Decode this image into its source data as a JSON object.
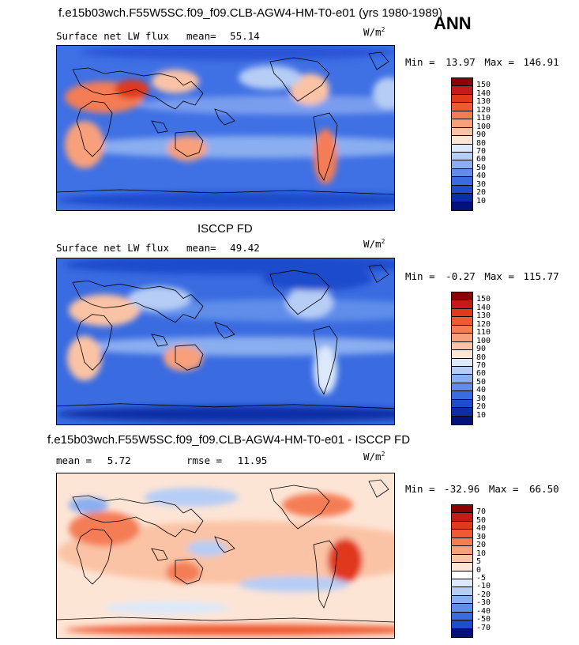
{
  "header": {
    "title": "f.e15b03wch.F55W5SC.f09_f09.CLB-AGW4-HM-T0-e01 (yrs 1980-1989)",
    "season": "ANN"
  },
  "panels": [
    {
      "id": "model",
      "left_label": "Surface net LW flux",
      "mean_label": "mean=",
      "mean_value": "55.14",
      "units": "W/m",
      "units_exp": "2",
      "min_label": "Min =",
      "min_value": "13.97",
      "max_label": "Max =",
      "max_value": "146.91",
      "colorbar": {
        "labels": [
          "150",
          "140",
          "130",
          "120",
          "110",
          "100",
          "90",
          "80",
          "70",
          "60",
          "50",
          "40",
          "30",
          "20",
          "10"
        ],
        "colors": [
          "#8b0000",
          "#c41a1a",
          "#e0391b",
          "#ef5a33",
          "#f47d54",
          "#f8a07b",
          "#fbc3a5",
          "#fde5d6",
          "#dce9fb",
          "#b6cdf5",
          "#8aaef0",
          "#5f8de9",
          "#3a6be0",
          "#1f4ccc",
          "#0b2ea6",
          "#03107a"
        ]
      },
      "base": "#3f70e4",
      "blobs": [
        {
          "c": "#2a55d6",
          "x": 230,
          "y": 8,
          "rx": 200,
          "ry": 10
        },
        {
          "c": "#7a9eee",
          "x": 300,
          "y": 75,
          "rx": 200,
          "ry": 12
        },
        {
          "c": "#8aaef0",
          "x": 250,
          "y": 128,
          "rx": 230,
          "ry": 14
        },
        {
          "c": "#f47d54",
          "x": 60,
          "y": 65,
          "rx": 50,
          "ry": 20
        },
        {
          "c": "#e0391b",
          "x": 95,
          "y": 55,
          "rx": 22,
          "ry": 12
        },
        {
          "c": "#fbc3a5",
          "x": 150,
          "y": 45,
          "rx": 30,
          "ry": 15
        },
        {
          "c": "#f8a07b",
          "x": 35,
          "y": 125,
          "rx": 25,
          "ry": 30
        },
        {
          "c": "#f8a07b",
          "x": 165,
          "y": 130,
          "rx": 25,
          "ry": 16
        },
        {
          "c": "#fbc3a5",
          "x": 320,
          "y": 55,
          "rx": 25,
          "ry": 20
        },
        {
          "c": "#f47d54",
          "x": 340,
          "y": 140,
          "rx": 15,
          "ry": 35
        },
        {
          "c": "#b6cdf5",
          "x": 270,
          "y": 40,
          "rx": 40,
          "ry": 15
        },
        {
          "c": "#1f4ccc",
          "x": 240,
          "y": 195,
          "rx": 240,
          "ry": 10
        },
        {
          "c": "#b6cdf5",
          "x": 420,
          "y": 60,
          "rx": 20,
          "ry": 20
        }
      ]
    },
    {
      "id": "obs",
      "name": "ISCCP FD",
      "left_label": "Surface net LW flux",
      "mean_label": "mean=",
      "mean_value": "49.42",
      "units": "W/m",
      "units_exp": "2",
      "min_label": "Min =",
      "min_value": "-0.27",
      "max_label": "Max =",
      "max_value": "115.77",
      "colorbar": {
        "labels": [
          "150",
          "140",
          "130",
          "120",
          "110",
          "100",
          "90",
          "80",
          "70",
          "60",
          "50",
          "40",
          "30",
          "20",
          "10"
        ],
        "colors": [
          "#8b0000",
          "#c41a1a",
          "#e0391b",
          "#ef5a33",
          "#f47d54",
          "#f8a07b",
          "#fbc3a5",
          "#fde5d6",
          "#dce9fb",
          "#b6cdf5",
          "#8aaef0",
          "#5f8de9",
          "#3a6be0",
          "#1f4ccc",
          "#0b2ea6",
          "#03107a"
        ]
      },
      "base": "#3a6be0",
      "blobs": [
        {
          "c": "#1f4ccc",
          "x": 230,
          "y": 8,
          "rx": 220,
          "ry": 12
        },
        {
          "c": "#5f8de9",
          "x": 300,
          "y": 65,
          "rx": 200,
          "ry": 14
        },
        {
          "c": "#8aaef0",
          "x": 250,
          "y": 110,
          "rx": 230,
          "ry": 12
        },
        {
          "c": "#fbc3a5",
          "x": 60,
          "y": 65,
          "rx": 45,
          "ry": 20
        },
        {
          "c": "#b6cdf5",
          "x": 130,
          "y": 50,
          "rx": 40,
          "ry": 15
        },
        {
          "c": "#f8a07b",
          "x": 160,
          "y": 125,
          "rx": 25,
          "ry": 16
        },
        {
          "c": "#fbc3a5",
          "x": 35,
          "y": 125,
          "rx": 22,
          "ry": 28
        },
        {
          "c": "#b6cdf5",
          "x": 320,
          "y": 55,
          "rx": 30,
          "ry": 20
        },
        {
          "c": "#dce9fb",
          "x": 340,
          "y": 140,
          "rx": 15,
          "ry": 30
        },
        {
          "c": "#0b2ea6",
          "x": 240,
          "y": 195,
          "rx": 240,
          "ry": 10
        },
        {
          "c": "#1f4ccc",
          "x": 330,
          "y": 25,
          "rx": 70,
          "ry": 15
        }
      ]
    },
    {
      "id": "diff",
      "name": "f.e15b03wch.F55W5SC.f09_f09.CLB-AGW4-HM-T0-e01 - ISCCP FD",
      "mean_label": "mean =",
      "mean_value": "5.72",
      "rmse_label": "rmse =",
      "rmse_value": "11.95",
      "units": "W/m",
      "units_exp": "2",
      "min_label": "Min =",
      "min_value": "-32.96",
      "max_label": "Max =",
      "max_value": "66.50",
      "colorbar": {
        "labels": [
          "70",
          "50",
          "40",
          "30",
          "20",
          "10",
          "5",
          "0",
          "-5",
          "-10",
          "-20",
          "-30",
          "-40",
          "-50",
          "-70"
        ],
        "colors": [
          "#8b0000",
          "#c41a1a",
          "#e0391b",
          "#ef5a33",
          "#f47d54",
          "#f8a07b",
          "#fbc3a5",
          "#fde5d6",
          "#ffffff",
          "#dce9fb",
          "#b6cdf5",
          "#8aaef0",
          "#5f8de9",
          "#3a6be0",
          "#1f4ccc",
          "#03107a"
        ]
      },
      "base": "#fde5d6",
      "blobs": [
        {
          "c": "#fbc3a5",
          "x": 240,
          "y": 100,
          "rx": 240,
          "ry": 40
        },
        {
          "c": "#f47d54",
          "x": 60,
          "y": 70,
          "rx": 45,
          "ry": 22
        },
        {
          "c": "#e0391b",
          "x": 365,
          "y": 110,
          "rx": 22,
          "ry": 28
        },
        {
          "c": "#f47d54",
          "x": 330,
          "y": 40,
          "rx": 45,
          "ry": 15
        },
        {
          "c": "#b6cdf5",
          "x": 170,
          "y": 30,
          "rx": 60,
          "ry": 12
        },
        {
          "c": "#b6cdf5",
          "x": 300,
          "y": 140,
          "rx": 70,
          "ry": 10
        },
        {
          "c": "#8aaef0",
          "x": 40,
          "y": 40,
          "rx": 25,
          "ry": 10
        },
        {
          "c": "#f47d54",
          "x": 160,
          "y": 125,
          "rx": 22,
          "ry": 14
        },
        {
          "c": "#dce9fb",
          "x": 140,
          "y": 170,
          "rx": 80,
          "ry": 8
        },
        {
          "c": "#ef5a33",
          "x": 240,
          "y": 198,
          "rx": 230,
          "ry": 7
        },
        {
          "c": "#b6cdf5",
          "x": 190,
          "y": 95,
          "rx": 25,
          "ry": 10
        }
      ]
    }
  ]
}
